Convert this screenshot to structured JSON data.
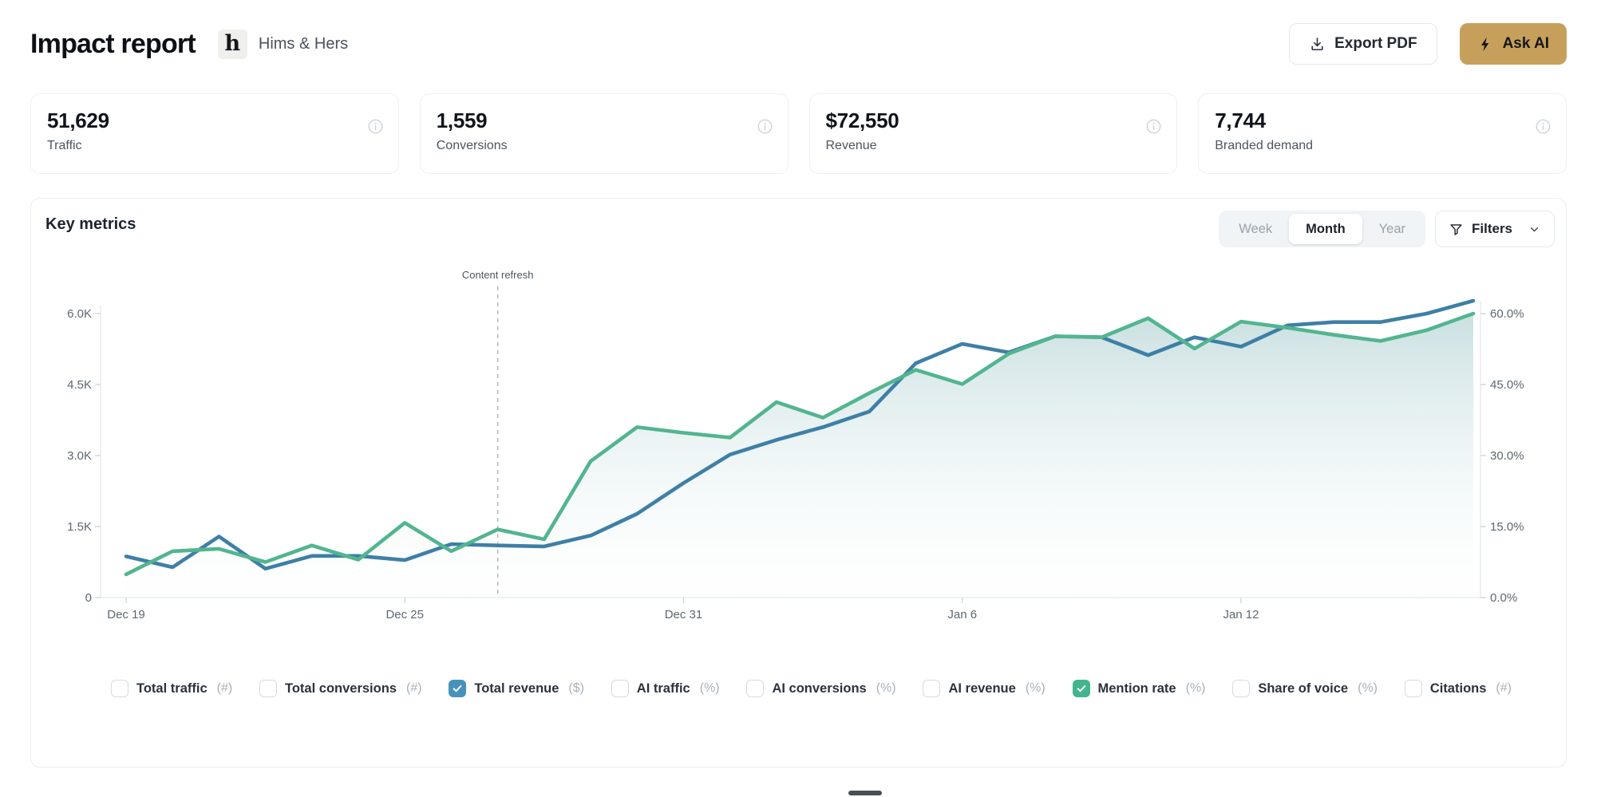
{
  "header": {
    "title": "Impact report",
    "logo_letter": "h",
    "company": "Hims & Hers",
    "export_label": "Export PDF",
    "ask_ai_label": "Ask AI"
  },
  "stats": [
    {
      "value": "51,629",
      "label": "Traffic"
    },
    {
      "value": "1,559",
      "label": "Conversions"
    },
    {
      "value": "$72,550",
      "label": "Revenue"
    },
    {
      "value": "7,744",
      "label": "Branded demand"
    }
  ],
  "key_metrics": {
    "title": "Key metrics",
    "range_tabs": [
      {
        "label": "Week",
        "active": false
      },
      {
        "label": "Month",
        "active": true
      },
      {
        "label": "Year",
        "active": false
      }
    ],
    "filters_label": "Filters"
  },
  "chart_data": {
    "type": "line",
    "n_points": 30,
    "x_tick_labels": [
      "Dec 19",
      "Dec 25",
      "Dec 31",
      "Jan 6",
      "Jan 12"
    ],
    "x_tick_day_indices": [
      0,
      6,
      12,
      18,
      24
    ],
    "left_axis": {
      "ticks": [
        "0",
        "1.5K",
        "3.0K",
        "4.5K",
        "6.0K"
      ],
      "tick_values": [
        0,
        1500,
        3000,
        4500,
        6000
      ],
      "range": [
        0,
        6000
      ]
    },
    "right_axis": {
      "ticks": [
        "0.0%",
        "15.0%",
        "30.0%",
        "45.0%",
        "60.0%"
      ],
      "tick_values": [
        0,
        15,
        30,
        45,
        60
      ],
      "range": [
        0,
        60
      ]
    },
    "annotation": {
      "label": "Content refresh",
      "day_index": 8
    },
    "legend_position": "bottom-checkboxes",
    "grid": false,
    "series": [
      {
        "name": "Total revenue",
        "unit": "$",
        "axis": "left",
        "color": "#3e7fa6",
        "area_fill": false,
        "values": [
          870,
          640,
          1290,
          610,
          880,
          880,
          790,
          1130,
          1100,
          1080,
          1310,
          1770,
          2420,
          3020,
          3330,
          3600,
          3930,
          4950,
          5360,
          5180,
          5520,
          5500,
          5120,
          5500,
          5300,
          5750,
          5820,
          5820,
          6000,
          6270
        ]
      },
      {
        "name": "Mention rate",
        "unit": "%",
        "axis": "right",
        "color": "#52b58f",
        "area_fill": true,
        "values": [
          4.9,
          9.8,
          10.3,
          7.5,
          11.0,
          8.0,
          15.8,
          9.8,
          14.4,
          12.3,
          28.8,
          36.0,
          34.8,
          33.8,
          41.3,
          38.0,
          43.2,
          48.1,
          45.1,
          51.5,
          55.2,
          55.0,
          59.0,
          52.6,
          58.3,
          57.0,
          55.5,
          54.2,
          56.5,
          60.0
        ]
      }
    ]
  },
  "toggles": [
    {
      "label": "Total traffic",
      "unit": "(#)",
      "checked": false,
      "check_color": null
    },
    {
      "label": "Total conversions",
      "unit": "(#)",
      "checked": false,
      "check_color": null
    },
    {
      "label": "Total revenue",
      "unit": "($)",
      "checked": true,
      "check_color": "#4792bc"
    },
    {
      "label": "AI traffic",
      "unit": "(%)",
      "checked": false,
      "check_color": null
    },
    {
      "label": "AI conversions",
      "unit": "(%)",
      "checked": false,
      "check_color": null
    },
    {
      "label": "AI revenue",
      "unit": "(%)",
      "checked": false,
      "check_color": null
    },
    {
      "label": "Mention rate",
      "unit": "(%)",
      "checked": true,
      "check_color": "#42b48e"
    },
    {
      "label": "Share of voice",
      "unit": "(%)",
      "checked": false,
      "check_color": null
    },
    {
      "label": "Citations",
      "unit": "(#)",
      "checked": false,
      "check_color": null
    }
  ],
  "colors": {
    "accent_gold": "#c6a05a",
    "revenue_blue": "#3e7fa6",
    "mention_green": "#52b58f",
    "axis_text": "#5d6771",
    "axis_line": "#e3e9ec",
    "annotation_line": "#aeb6bf"
  }
}
